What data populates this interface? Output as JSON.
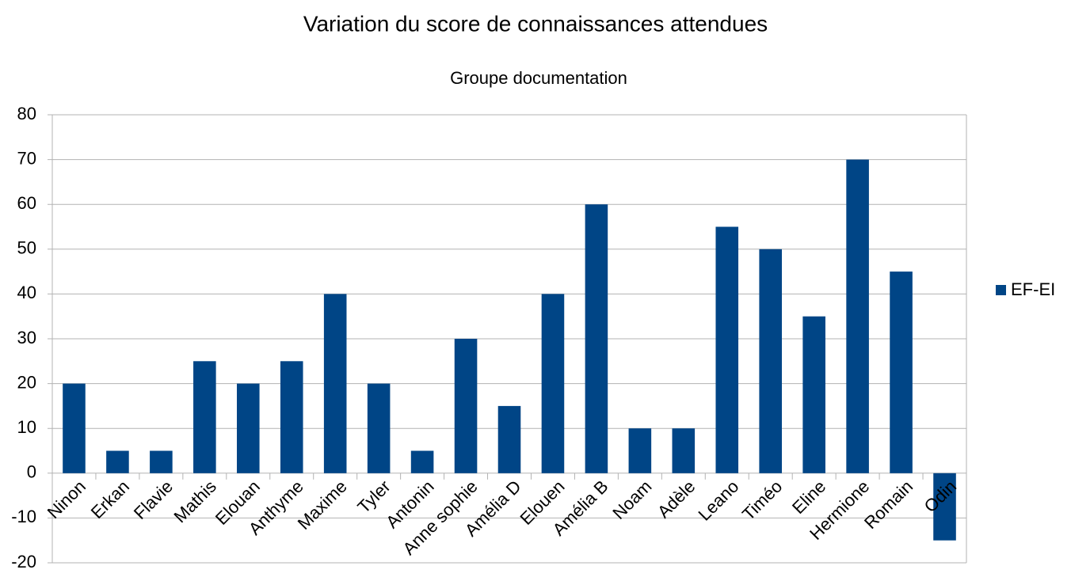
{
  "chart_data": {
    "type": "bar",
    "title": "Variation du score de connaissances attendues",
    "subtitle": "Groupe documentation",
    "categories": [
      "Ninon",
      "Erkan",
      "Flavie",
      "Mathis",
      "Elouan",
      "Anthyme",
      "Maxime",
      "Tyler",
      "Antonin",
      "Anne sophie",
      "Amélia D",
      "Elouen",
      "Amélia B",
      "Noam",
      "Adèle",
      "Leano",
      "Timéo",
      "Eline",
      "Hermione",
      "Romain",
      "Odin"
    ],
    "series": [
      {
        "name": "EF-EI",
        "color": "#004586",
        "values": [
          20,
          5,
          5,
          25,
          20,
          25,
          40,
          20,
          5,
          30,
          15,
          40,
          60,
          10,
          10,
          55,
          50,
          35,
          70,
          45,
          -15
        ]
      }
    ],
    "ylim": [
      -20,
      80
    ],
    "yticks": [
      -20,
      -10,
      0,
      10,
      20,
      30,
      40,
      50,
      60,
      70,
      80
    ],
    "grid": true,
    "legend": "right"
  }
}
